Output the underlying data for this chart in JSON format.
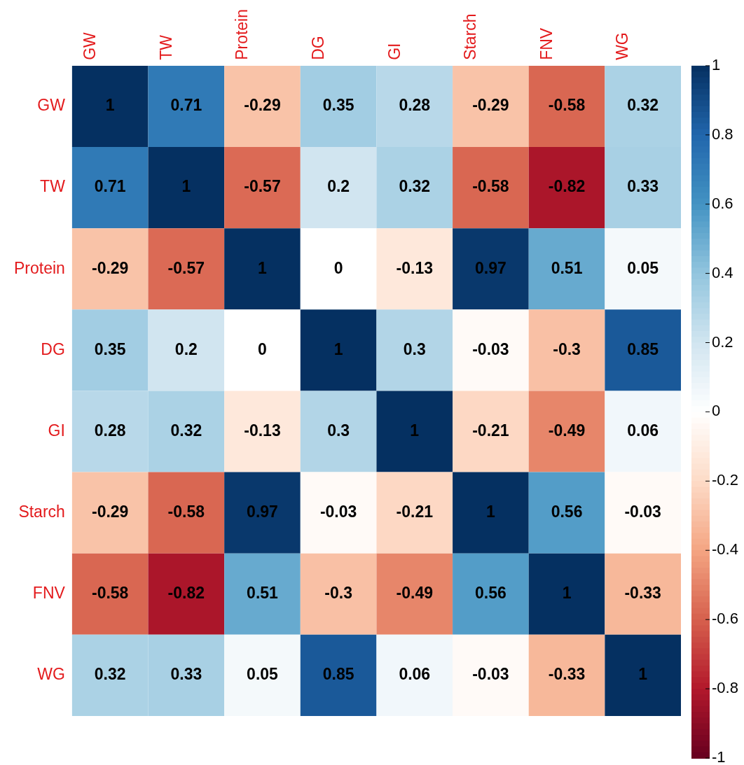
{
  "chart_data": {
    "type": "heatmap",
    "categories": [
      "GW",
      "TW",
      "Protein",
      "DG",
      "GI",
      "Starch",
      "FNV",
      "WG"
    ],
    "y_categories": [
      "GW",
      "TW",
      "Protein",
      "DG",
      "GI",
      "Starch",
      "FNV",
      "WG"
    ],
    "cells": [
      [
        1,
        0.71,
        -0.29,
        0.35,
        0.28,
        -0.29,
        -0.58,
        0.32
      ],
      [
        0.71,
        1,
        -0.57,
        0.2,
        0.32,
        -0.58,
        -0.82,
        0.33
      ],
      [
        -0.29,
        -0.57,
        1,
        0,
        -0.13,
        0.97,
        0.51,
        0.05
      ],
      [
        0.35,
        0.2,
        0,
        1,
        0.3,
        -0.03,
        -0.3,
        0.85
      ],
      [
        0.28,
        0.32,
        -0.13,
        0.3,
        1,
        -0.21,
        -0.49,
        0.06
      ],
      [
        -0.29,
        -0.58,
        0.97,
        -0.03,
        -0.21,
        1,
        0.56,
        -0.03
      ],
      [
        -0.58,
        -0.82,
        0.51,
        -0.3,
        -0.49,
        0.56,
        1,
        -0.33
      ],
      [
        0.32,
        0.33,
        0.05,
        0.85,
        0.06,
        -0.03,
        -0.33,
        1
      ]
    ],
    "clim": [
      -1,
      1
    ],
    "cticks": [
      -1,
      -0.8,
      -0.6,
      -0.4,
      -0.2,
      0,
      0.2,
      0.4,
      0.6,
      0.8,
      1
    ],
    "data_labels": true
  }
}
